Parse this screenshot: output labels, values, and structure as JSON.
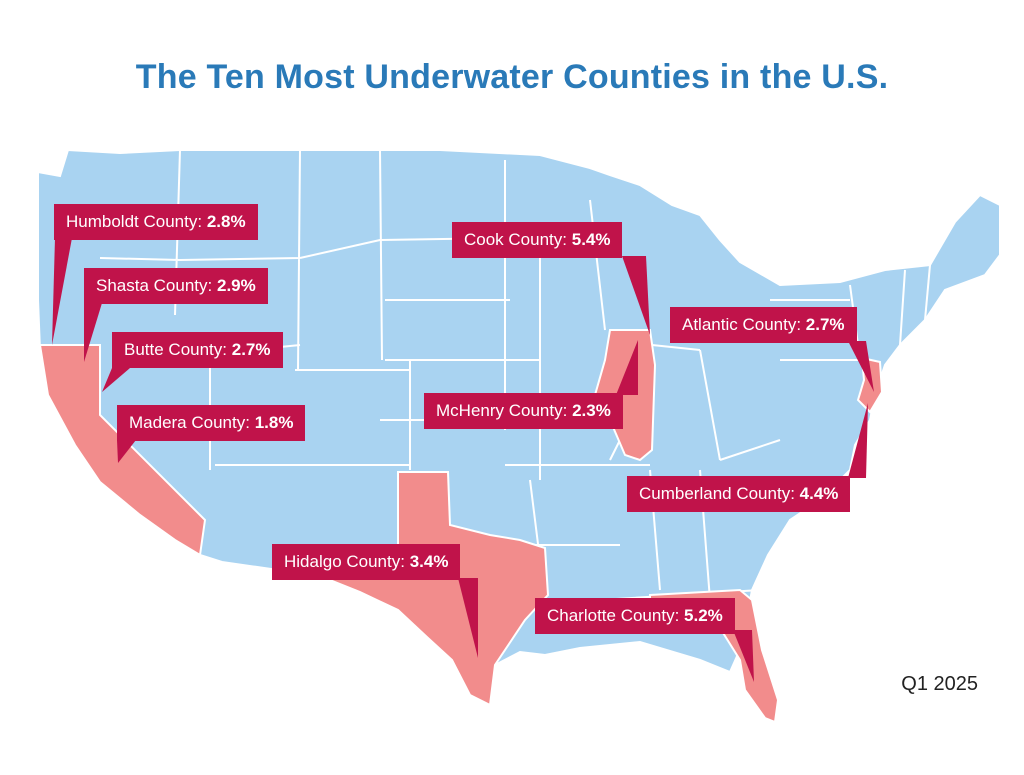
{
  "title": "The Ten Most Underwater Counties in the U.S.",
  "footer": "Q1 2025",
  "colors": {
    "title": "#2a7ab8",
    "land": "#a9d3f1",
    "highlighted_state": "#f28c8c",
    "callout": "#c0134a"
  },
  "highlighted_states": [
    "California",
    "Texas",
    "Illinois",
    "New Jersey",
    "Florida"
  ],
  "counties": [
    {
      "name": "Humboldt County:",
      "value": "2.8%"
    },
    {
      "name": "Shasta County:",
      "value": "2.9%"
    },
    {
      "name": "Butte County:",
      "value": "2.7%"
    },
    {
      "name": "Madera County:",
      "value": "1.8%"
    },
    {
      "name": "Cook County:",
      "value": "5.4%"
    },
    {
      "name": "McHenry County:",
      "value": "2.3%"
    },
    {
      "name": "Atlantic County:",
      "value": "2.7%"
    },
    {
      "name": "Cumberland County:",
      "value": "4.4%"
    },
    {
      "name": "Hidalgo County:",
      "value": "3.4%"
    },
    {
      "name": "Charlotte County:",
      "value": "5.2%"
    }
  ]
}
